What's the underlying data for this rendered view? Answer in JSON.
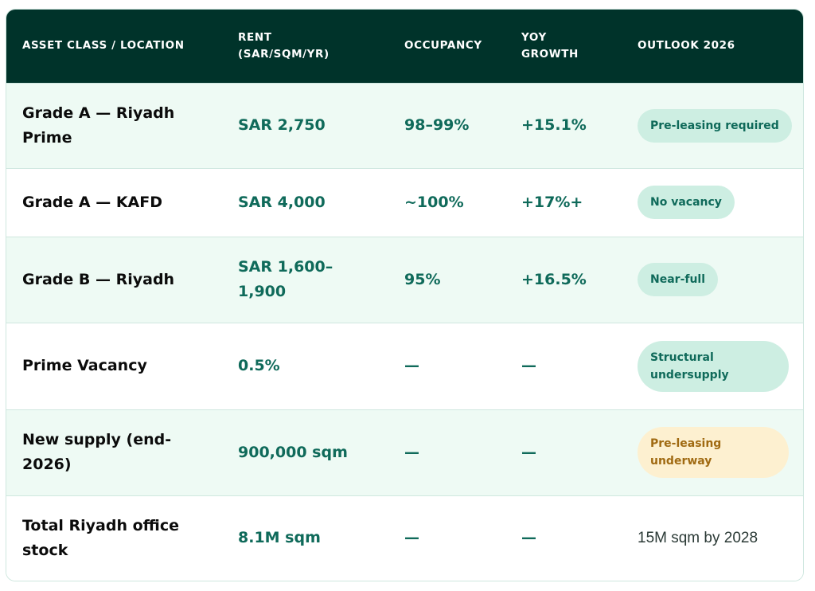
{
  "table": {
    "headers": {
      "asset": "ASSET CLASS / LOCATION",
      "rent_line1": "RENT",
      "rent_line2": "(SAR/SQM/YR)",
      "occupancy": "OCCUPANCY",
      "yoy_line1": "YOY",
      "yoy_line2": "GROWTH",
      "outlook": "OUTLOOK 2026"
    },
    "rows": [
      {
        "asset": "Grade A — Riyadh Prime",
        "rent": "SAR 2,750",
        "occupancy": "98–99%",
        "yoy": "+15.1%",
        "outlook": "Pre-leasing required",
        "outlook_style": "green"
      },
      {
        "asset": "Grade A — KAFD",
        "rent": "SAR 4,000",
        "occupancy": "~100%",
        "yoy": "+17%+",
        "outlook": "No vacancy",
        "outlook_style": "green"
      },
      {
        "asset": "Grade B — Riyadh",
        "rent": "SAR 1,600–1,900",
        "occupancy": "95%",
        "yoy": "+16.5%",
        "outlook": "Near-full",
        "outlook_style": "green"
      },
      {
        "asset": "Prime Vacancy",
        "rent": "0.5%",
        "occupancy": "—",
        "yoy": "—",
        "outlook": "Structural undersupply",
        "outlook_style": "green"
      },
      {
        "asset": "New supply (end-2026)",
        "rent": "900,000 sqm",
        "occupancy": "—",
        "yoy": "—",
        "outlook": "Pre-leasing underway",
        "outlook_style": "amber"
      },
      {
        "asset": "Total Riyadh office stock",
        "rent": "8.1M sqm",
        "occupancy": "—",
        "yoy": "—",
        "outlook": "15M sqm by 2028",
        "outlook_style": "plain"
      }
    ]
  },
  "colors": {
    "header_bg": "#00332a",
    "row_mint": "#eefaf4",
    "accent_text": "#0f6a5a",
    "badge_green": "#cdeee2",
    "badge_amber": "#fdf0d0",
    "badge_amber_text": "#a06a12"
  }
}
